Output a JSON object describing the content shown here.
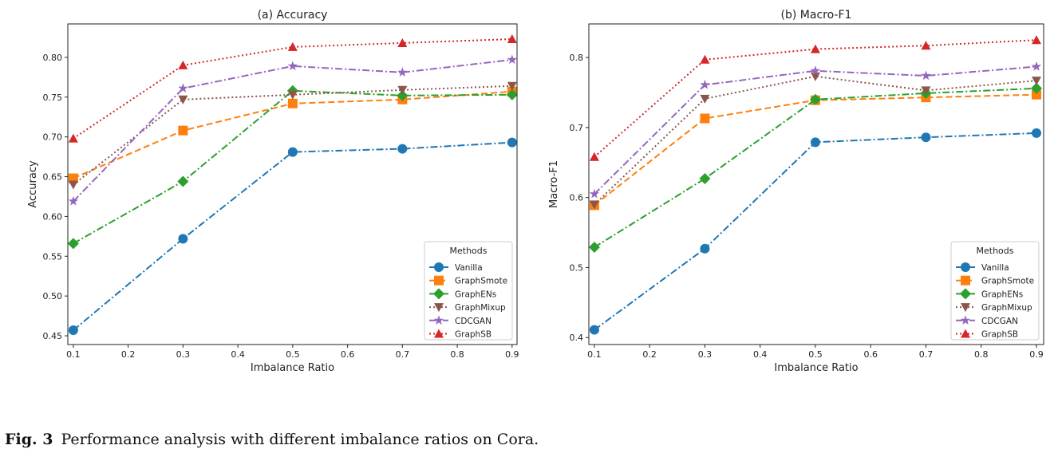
{
  "caption": {
    "label": "Fig. 3",
    "text": "Performance analysis with different imbalance ratios on Cora."
  },
  "chart_data": [
    {
      "type": "line",
      "title": "(a) Accuracy",
      "xlabel": "Imbalance Ratio",
      "ylabel": "Accuracy",
      "x": [
        0.1,
        0.3,
        0.5,
        0.7,
        0.9
      ],
      "xlim": [
        0.09,
        0.909
      ],
      "ylim": [
        0.439,
        0.842
      ],
      "xticks": [
        "0.1",
        "0.2",
        "0.3",
        "0.4",
        "0.5",
        "0.6",
        "0.7",
        "0.8",
        "0.9"
      ],
      "yticks": [
        "0.45",
        "0.50",
        "0.55",
        "0.60",
        "0.65",
        "0.70",
        "0.75",
        "0.80"
      ],
      "grid": false,
      "legend": {
        "title": "Methods",
        "placement": "lower-right"
      },
      "series": [
        {
          "name": "Vanilla",
          "color": "#1f77b4",
          "marker": "circle",
          "linestyle": "dashdot",
          "values": [
            0.457,
            0.572,
            0.681,
            0.685,
            0.693
          ]
        },
        {
          "name": "GraphSmote",
          "color": "#ff7f0e",
          "marker": "square",
          "linestyle": "dashed",
          "values": [
            0.648,
            0.708,
            0.742,
            0.747,
            0.757
          ]
        },
        {
          "name": "GraphENs",
          "color": "#2ca02c",
          "marker": "diamond",
          "linestyle": "dashdot",
          "values": [
            0.566,
            0.644,
            0.758,
            0.752,
            0.753
          ]
        },
        {
          "name": "GraphMixup",
          "color": "#8c564b",
          "marker": "triangle-down",
          "linestyle": "dotted",
          "values": [
            0.64,
            0.747,
            0.753,
            0.759,
            0.764
          ]
        },
        {
          "name": "CDCGAN",
          "color": "#9467bd",
          "marker": "star",
          "linestyle": "dashdot",
          "values": [
            0.619,
            0.761,
            0.789,
            0.781,
            0.797
          ]
        },
        {
          "name": "GraphSB",
          "color": "#d62728",
          "marker": "triangle-up",
          "linestyle": "dotted",
          "values": [
            0.698,
            0.79,
            0.813,
            0.818,
            0.823
          ]
        }
      ]
    },
    {
      "type": "line",
      "title": "(b) Macro-F1",
      "xlabel": "Imbalance Ratio",
      "ylabel": "Macro-F1",
      "x": [
        0.1,
        0.3,
        0.5,
        0.7,
        0.9
      ],
      "xlim": [
        0.09,
        0.913
      ],
      "ylim": [
        0.39,
        0.848
      ],
      "xticks": [
        "0.1",
        "0.2",
        "0.3",
        "0.4",
        "0.5",
        "0.6",
        "0.7",
        "0.8",
        "0.9"
      ],
      "yticks": [
        "0.4",
        "0.5",
        "0.6",
        "0.7",
        "0.8"
      ],
      "grid": false,
      "legend": {
        "title": "Methods",
        "placement": "lower-right"
      },
      "series": [
        {
          "name": "Vanilla",
          "color": "#1f77b4",
          "marker": "circle",
          "linestyle": "dashdot",
          "values": [
            0.411,
            0.527,
            0.679,
            0.686,
            0.692
          ]
        },
        {
          "name": "GraphSmote",
          "color": "#ff7f0e",
          "marker": "square",
          "linestyle": "dashed",
          "values": [
            0.589,
            0.713,
            0.739,
            0.743,
            0.747
          ]
        },
        {
          "name": "GraphENs",
          "color": "#2ca02c",
          "marker": "diamond",
          "linestyle": "dashdot",
          "values": [
            0.529,
            0.627,
            0.74,
            0.749,
            0.756
          ]
        },
        {
          "name": "GraphMixup",
          "color": "#8c564b",
          "marker": "triangle-down",
          "linestyle": "dotted",
          "values": [
            0.59,
            0.741,
            0.773,
            0.753,
            0.767
          ]
        },
        {
          "name": "CDCGAN",
          "color": "#9467bd",
          "marker": "star",
          "linestyle": "dashdot",
          "values": [
            0.605,
            0.761,
            0.781,
            0.774,
            0.787
          ]
        },
        {
          "name": "GraphSB",
          "color": "#d62728",
          "marker": "triangle-up",
          "linestyle": "dotted",
          "values": [
            0.658,
            0.797,
            0.812,
            0.817,
            0.825
          ]
        }
      ]
    }
  ]
}
